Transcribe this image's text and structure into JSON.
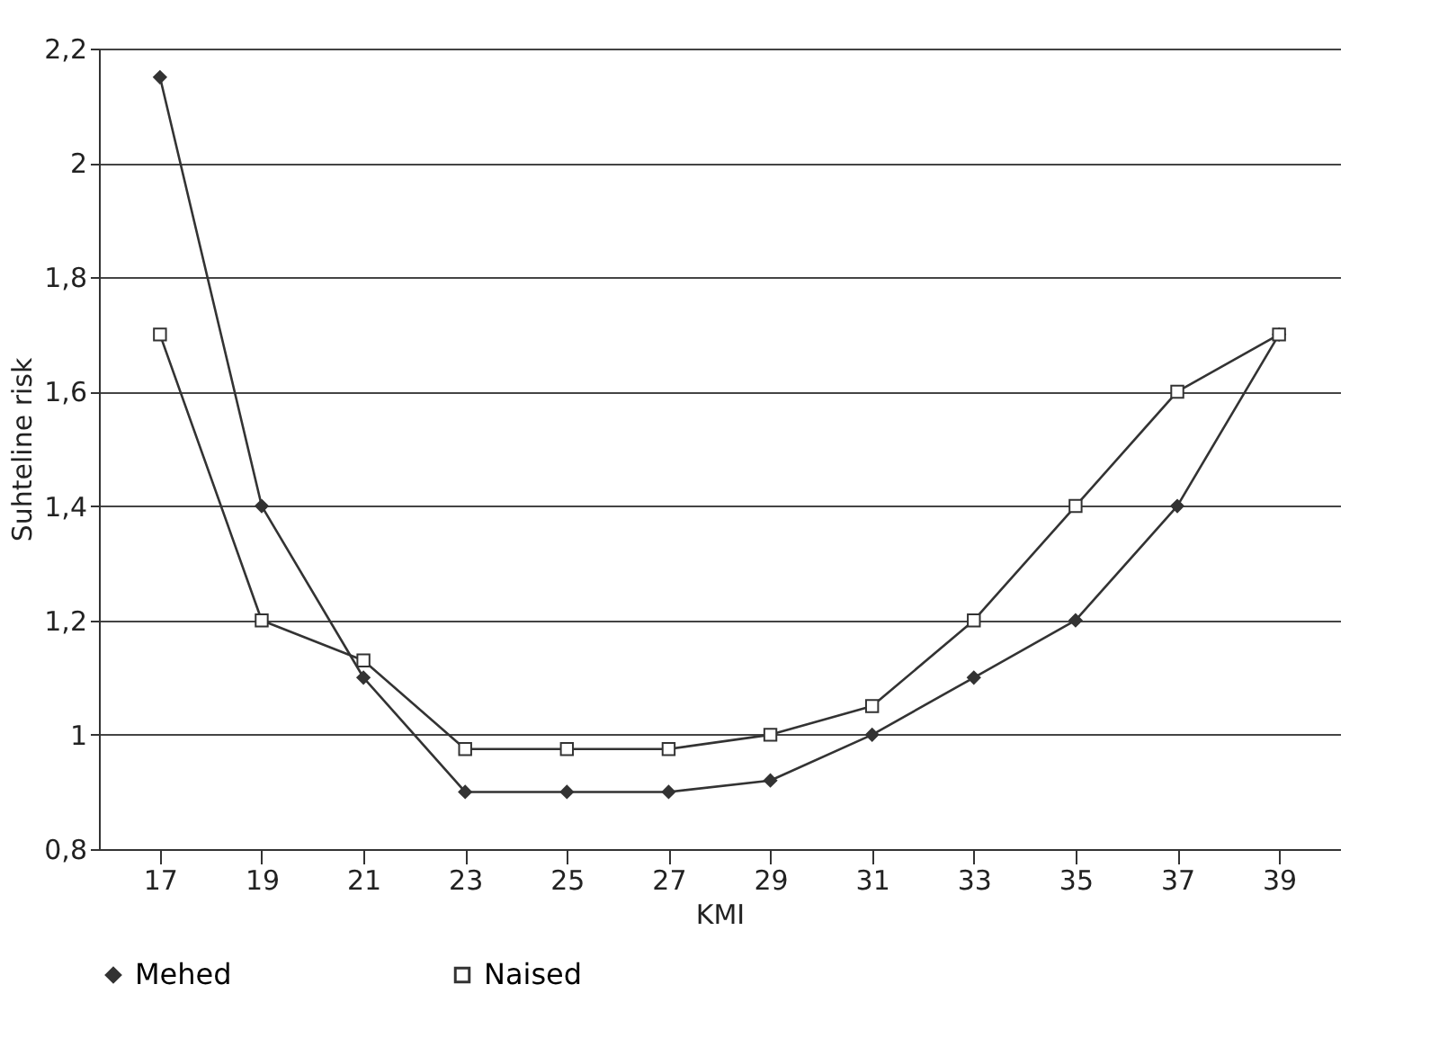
{
  "chart_data": {
    "type": "line",
    "xlabel": "KMI",
    "ylabel": "Suhteline risk",
    "categories": [
      "17",
      "19",
      "21",
      "23",
      "25",
      "27",
      "29",
      "31",
      "33",
      "35",
      "37",
      "39"
    ],
    "series": [
      {
        "name": "Mehed",
        "color": "#333333",
        "marker": "diamond",
        "values": [
          2.15,
          1.4,
          1.1,
          0.9,
          0.9,
          0.9,
          0.92,
          1.0,
          1.1,
          1.2,
          1.4,
          1.7
        ]
      },
      {
        "name": "Naised",
        "color": "#333333",
        "marker": "square",
        "values": [
          1.7,
          1.2,
          1.13,
          0.975,
          0.975,
          0.975,
          1.0,
          1.05,
          1.2,
          1.4,
          1.6,
          1.7
        ]
      }
    ],
    "ylim": [
      0.8,
      2.2
    ],
    "yticks": [
      {
        "value": 0.8,
        "label": "0,8"
      },
      1,
      {
        "value": 1.2,
        "label": "1,2"
      },
      {
        "value": 1.4,
        "label": "1,4"
      },
      {
        "value": 1.6,
        "label": "1,6"
      },
      {
        "value": 1.8,
        "label": "1,8"
      },
      2,
      {
        "value": 2.2,
        "label": "2,2"
      }
    ],
    "grid": "y",
    "legend": "bottom",
    "line_style": "solid"
  }
}
